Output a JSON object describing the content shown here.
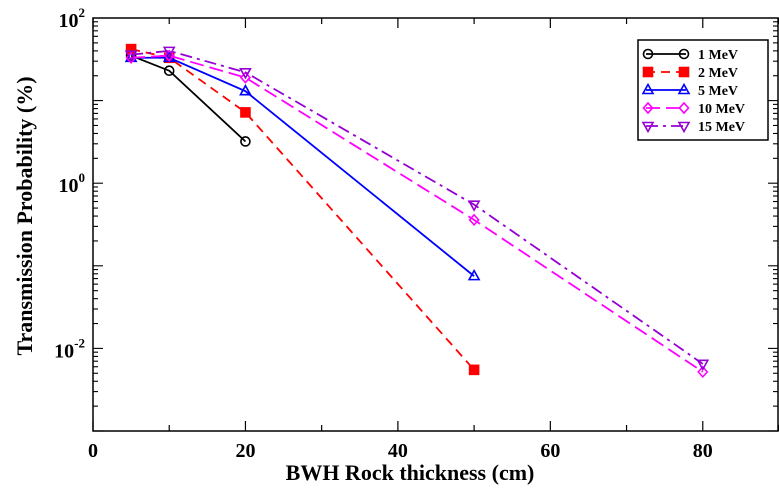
{
  "chart_data": {
    "type": "line",
    "title": "",
    "xlabel": "BWH Rock thickness (cm)",
    "ylabel": "Transmission Probability (%)",
    "xlim": [
      0,
      90
    ],
    "ylim": [
      0.001,
      100
    ],
    "y_scale": "log",
    "grid": false,
    "legend_position": "top-right",
    "x_ticks": [
      {
        "value": 0,
        "label": "0"
      },
      {
        "value": 20,
        "label": "20"
      },
      {
        "value": 40,
        "label": "40"
      },
      {
        "value": 60,
        "label": "60"
      },
      {
        "value": 80,
        "label": "80"
      }
    ],
    "y_ticks": [
      {
        "value": 100,
        "base": "10",
        "exp": "2"
      },
      {
        "value": 1,
        "base": "10",
        "exp": "0"
      },
      {
        "value": 0.01,
        "base": "10",
        "exp": "-2"
      }
    ],
    "series": [
      {
        "name": "1 MeV",
        "color": "#000000",
        "marker": "circle",
        "dash": "solid",
        "x": [
          5,
          10,
          20
        ],
        "y": [
          35,
          23,
          3.2
        ]
      },
      {
        "name": "2 MeV",
        "color": "#ff0000",
        "marker": "square",
        "dash": "dashed",
        "x": [
          5,
          10,
          20,
          50
        ],
        "y": [
          42,
          33,
          7.2,
          0.0055
        ]
      },
      {
        "name": "5 MeV",
        "color": "#0000ff",
        "marker": "triangle-up",
        "dash": "solid",
        "x": [
          5,
          10,
          20,
          50
        ],
        "y": [
          33,
          33,
          13,
          0.075
        ]
      },
      {
        "name": "10 MeV",
        "color": "#ff00ff",
        "marker": "diamond",
        "dash": "long-dashed",
        "x": [
          5,
          10,
          20,
          50,
          80
        ],
        "y": [
          33,
          35,
          19,
          0.36,
          0.0052
        ]
      },
      {
        "name": "15 MeV",
        "color": "#9400d3",
        "marker": "triangle-down",
        "dash": "dash-dot",
        "x": [
          5,
          10,
          20,
          50,
          80
        ],
        "y": [
          36,
          40,
          22,
          0.55,
          0.0065
        ]
      }
    ]
  }
}
